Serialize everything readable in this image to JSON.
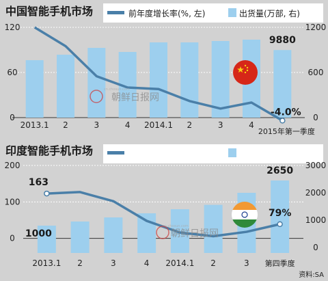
{
  "source_note": "资料:SA",
  "watermark": "朝鲜日报网",
  "watermark_small": "cn.chosun.com",
  "colors": {
    "bar": "#9dcfee",
    "line": "#4a7fa8",
    "grid": "#ffffff",
    "background": "#d2d2d2",
    "axis": "#333333"
  },
  "chart_data": [
    {
      "type": "bar+line",
      "title": "中国智能手机市场",
      "legend": {
        "line_label": "前年度增长率(%, 左)",
        "bar_label": "出货量(万部, 右)"
      },
      "categories": [
        "2013.1",
        "2",
        "3",
        "4",
        "2014.1",
        "2",
        "3",
        "4",
        "2015年第一季度"
      ],
      "series": [
        {
          "name": "出货量(万部, 右)",
          "type": "bar",
          "axis": "right",
          "values": [
            8400,
            9200,
            10200,
            9600,
            11000,
            11000,
            11200,
            11400,
            9880
          ]
        },
        {
          "name": "前年度增长率(%, 左)",
          "type": "line",
          "axis": "left",
          "values": [
            120,
            95,
            55,
            40,
            38,
            22,
            12,
            20,
            -4
          ]
        }
      ],
      "left_axis": {
        "ticks": [
          "120",
          "60",
          "0"
        ],
        "range": [
          0,
          120
        ]
      },
      "right_axis": {
        "ticks": [
          "1200",
          "600",
          "0"
        ],
        "range": [
          0,
          13200
        ]
      },
      "data_labels": [
        {
          "text": "9880",
          "category_index": 8,
          "series": "bar"
        },
        {
          "text": "-4.0%",
          "category_index": 8,
          "series": "line"
        }
      ],
      "flag": "china-flag"
    },
    {
      "type": "bar+line",
      "title": "印度智能手机市场",
      "categories": [
        "2013.1",
        "2",
        "3",
        "4",
        "2014.1",
        "2",
        "3",
        "第四季度"
      ],
      "series": [
        {
          "type": "bar",
          "axis": "right",
          "values": [
            1000,
            1150,
            1300,
            1450,
            1600,
            1760,
            2200,
            2650
          ]
        },
        {
          "type": "line",
          "axis": "left",
          "values": [
            163,
            167,
            142,
            88,
            56,
            46,
            58,
            79
          ]
        }
      ],
      "left_axis": {
        "ticks": [
          "200",
          "100",
          "0"
        ],
        "range": [
          0,
          240
        ]
      },
      "right_axis": {
        "ticks": [
          "3000",
          "2000",
          "1000",
          "0"
        ],
        "range": [
          0,
          3200
        ]
      },
      "data_labels": [
        {
          "text": "163",
          "category_index": 0,
          "series": "line"
        },
        {
          "text": "1000",
          "category_index": 0,
          "series": "bar"
        },
        {
          "text": "2650",
          "category_index": 7,
          "series": "bar"
        },
        {
          "text": "79%",
          "category_index": 7,
          "series": "line"
        }
      ],
      "flag": "india-flag"
    }
  ]
}
